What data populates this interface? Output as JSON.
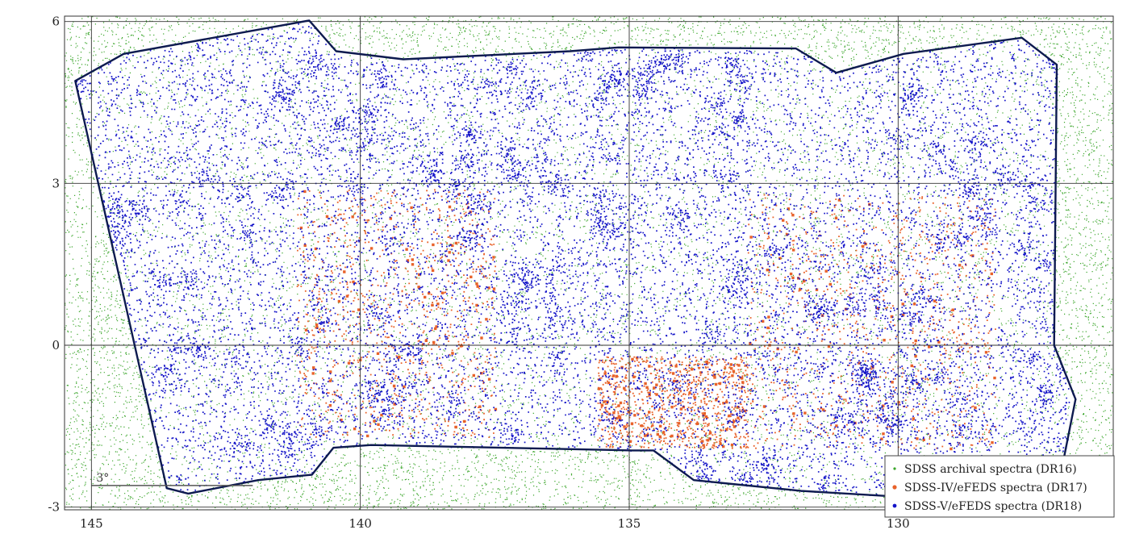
{
  "chart_data": {
    "type": "scatter",
    "xlim": [
      145.5,
      126.0
    ],
    "ylim": [
      -3.05,
      6.1
    ],
    "x_ticks": [
      145,
      140,
      135,
      130
    ],
    "x_tick_labels": [
      "145",
      "140",
      "135",
      "130"
    ],
    "y_ticks": [
      -3,
      0,
      3,
      6
    ],
    "y_tick_labels": [
      "-3",
      "0",
      "3",
      "6"
    ],
    "grid": true,
    "legend_position": "bottom-right",
    "scale_bar": {
      "label": "3°",
      "length_deg": 3.0,
      "ra": 145.0,
      "dec": -2.6
    },
    "footprint_outline": [
      [
        144.4,
        5.4
      ],
      [
        140.95,
        6.02
      ],
      [
        140.45,
        5.45
      ],
      [
        139.2,
        5.3
      ],
      [
        136.1,
        5.45
      ],
      [
        135.2,
        5.52
      ],
      [
        131.9,
        5.5
      ],
      [
        131.15,
        5.05
      ],
      [
        129.9,
        5.4
      ],
      [
        127.7,
        5.7
      ],
      [
        127.05,
        5.2
      ],
      [
        127.1,
        0.0
      ],
      [
        126.7,
        -1.0
      ],
      [
        126.95,
        -2.25
      ],
      [
        127.4,
        -3.05
      ],
      [
        128.1,
        -2.95
      ],
      [
        130.1,
        -2.8
      ],
      [
        131.8,
        -2.7
      ],
      [
        133.8,
        -2.5
      ],
      [
        134.55,
        -1.95
      ],
      [
        134.95,
        -1.95
      ],
      [
        139.8,
        -1.85
      ],
      [
        140.5,
        -1.9
      ],
      [
        140.9,
        -2.4
      ],
      [
        141.9,
        -2.5
      ],
      [
        143.2,
        -2.75
      ],
      [
        143.6,
        -2.65
      ],
      [
        145.3,
        4.9
      ],
      [
        144.4,
        5.4
      ]
    ],
    "series": [
      {
        "name": "SDSS archival spectra (DR16)",
        "color": "#3aa52a",
        "marker_size": 1.2,
        "n_points": 22000
      },
      {
        "name": "SDSS-IV/eFEDS spectra (DR17)",
        "color": "#e8622a",
        "marker_size": 1.8,
        "n_points": 2800,
        "regions": [
          {
            "ra_range": [
              141.2,
              137.5
            ],
            "dec_range": [
              -1.7,
              2.9
            ]
          },
          {
            "ra_range": [
              132.8,
              128.2
            ],
            "dec_range": [
              -1.9,
              2.8
            ]
          },
          {
            "ra_range": [
              135.6,
              132.8
            ],
            "dec_range": [
              -1.9,
              -0.2
            ]
          }
        ]
      },
      {
        "name": "SDSS-V/eFEDS spectra (DR18)",
        "color": "#1414c8",
        "marker_size": 1.7,
        "n_points": 16000
      }
    ]
  }
}
